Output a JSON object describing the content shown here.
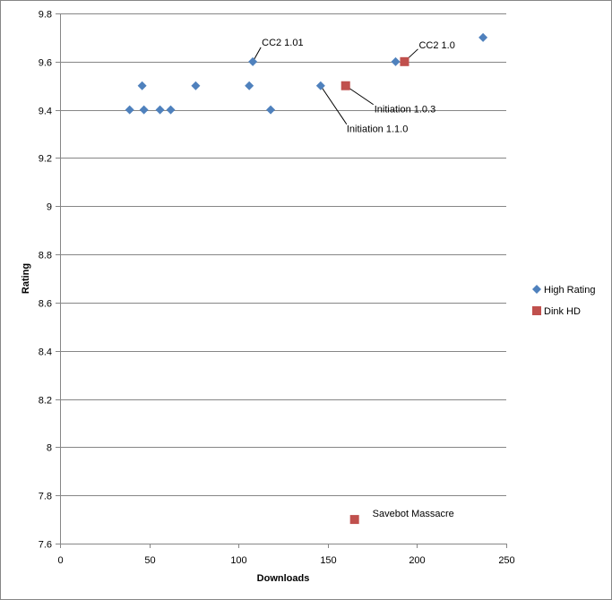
{
  "chart_data": {
    "type": "scatter",
    "title": "",
    "xlabel": "Downloads",
    "ylabel": "Rating",
    "xlim": [
      0,
      250
    ],
    "ylim": [
      7.6,
      9.8
    ],
    "x_ticks": [
      0,
      50,
      100,
      150,
      200,
      250
    ],
    "y_ticks": [
      7.6,
      7.8,
      8,
      8.2,
      8.4,
      8.6,
      8.8,
      9,
      9.2,
      9.4,
      9.6,
      9.8
    ],
    "grid": "horizontal major",
    "legend_position": "right",
    "series": [
      {
        "name": "High Rating",
        "marker": "diamond",
        "color": "#4F81BD",
        "points": [
          {
            "x": 39,
            "y": 9.4
          },
          {
            "x": 46,
            "y": 9.5
          },
          {
            "x": 47,
            "y": 9.4
          },
          {
            "x": 56,
            "y": 9.4
          },
          {
            "x": 62,
            "y": 9.4
          },
          {
            "x": 76,
            "y": 9.5
          },
          {
            "x": 106,
            "y": 9.5
          },
          {
            "x": 108,
            "y": 9.6,
            "label": "CC2 1.01"
          },
          {
            "x": 118,
            "y": 9.4
          },
          {
            "x": 146,
            "y": 9.5,
            "label": "Initiation 1.1.0"
          },
          {
            "x": 188,
            "y": 9.6
          },
          {
            "x": 237,
            "y": 9.7
          }
        ]
      },
      {
        "name": "Dink HD",
        "marker": "square",
        "color": "#C0504D",
        "points": [
          {
            "x": 160,
            "y": 9.5,
            "label": "Initiation 1.0.3"
          },
          {
            "x": 193,
            "y": 9.6,
            "label": "CC2 1.0"
          },
          {
            "x": 165,
            "y": 7.7,
            "label": "Savebot Massacre"
          }
        ]
      }
    ]
  }
}
